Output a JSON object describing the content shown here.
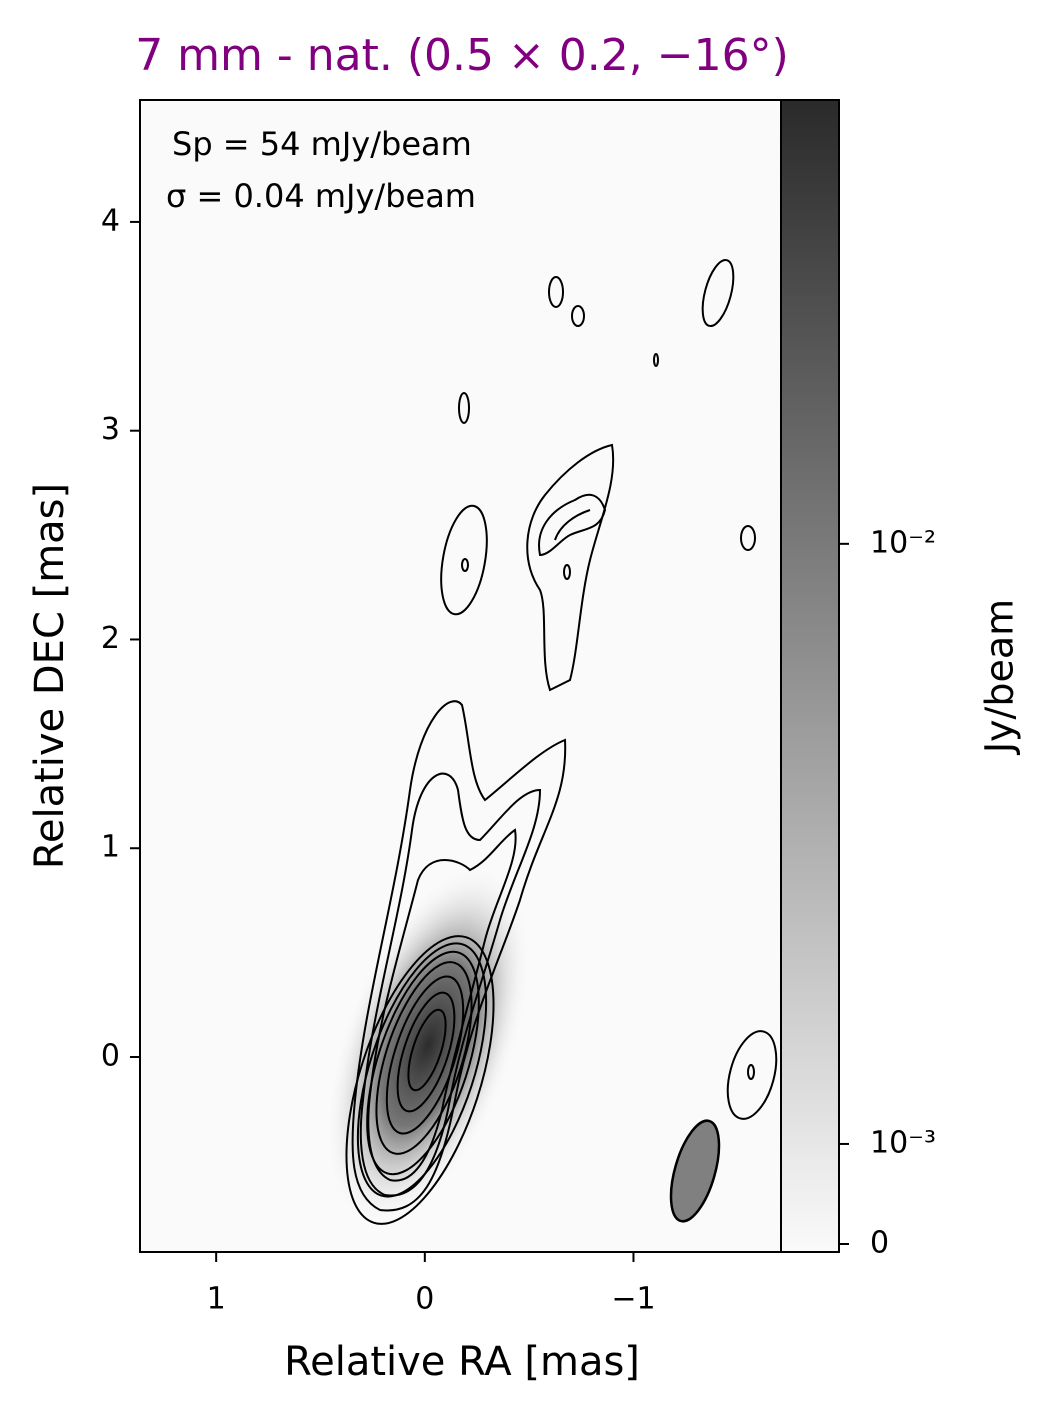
{
  "chart_data": {
    "type": "contour-map",
    "title": "7 mm - nat. (0.5 × 0.2, −16°)",
    "title_color": "#800080",
    "annotations": [
      "Sp = 54 mJy/beam",
      "σ = 0.04 mJy/beam"
    ],
    "x_label": "Relative RA [mas]",
    "y_label": "Relative DEC [mas]",
    "xlim": [
      1.365,
      -1.707
    ],
    "xticks": [
      1,
      0,
      {
        "value": -1,
        "label": "−1"
      }
    ],
    "ylim": [
      -0.934,
      4.584
    ],
    "yticks": [
      0,
      1,
      2,
      3,
      4
    ],
    "colorbar_label": "Jy/beam",
    "cbar_scale": "symlog",
    "cbar_linthresh": 0.001,
    "cbar_linscale": 0.1667,
    "cbar_lim": [
      -8e-05,
      0.0549
    ],
    "cbar_ticks": [
      0,
      {
        "value": 0.001,
        "label": "10⁻³"
      },
      {
        "value": 0.01,
        "label": "10⁻²"
      }
    ],
    "cmap": [
      "#fafafa",
      "#2a2a2a"
    ]
  }
}
